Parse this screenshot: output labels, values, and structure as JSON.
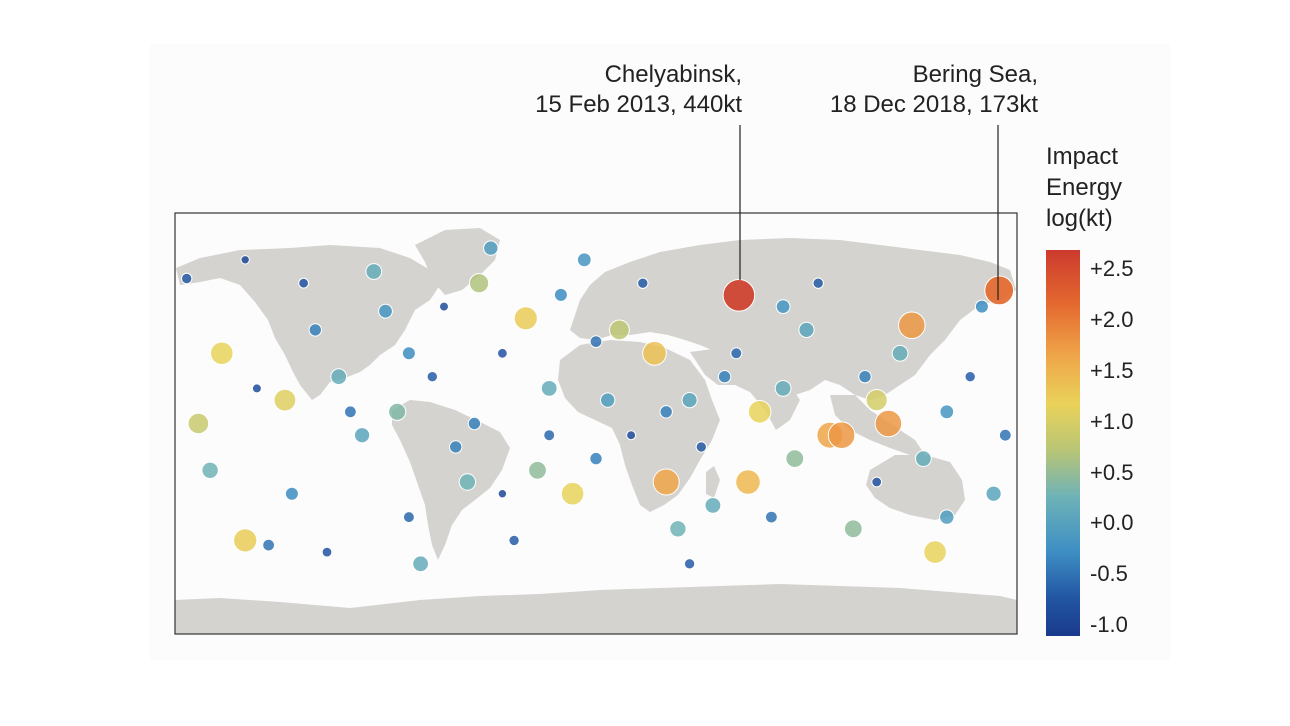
{
  "annotations": {
    "chelyabinsk": {
      "line1": "Chelyabinsk,",
      "line2": "15 Feb 2013, 440kt",
      "lon": 61.1,
      "lat": 54.8,
      "energy_log": 2.64
    },
    "bering": {
      "line1": "Bering Sea,",
      "line2": "18 Dec 2018, 173kt",
      "lon": 172.4,
      "lat": 56.9,
      "energy_log": 2.24
    }
  },
  "legend": {
    "title_line1": "Impact",
    "title_line2": "Energy",
    "title_line3": "log(kt)",
    "ticks": [
      "+2.5",
      "+2.0",
      "+1.5",
      "+1.0",
      "+0.5",
      "+0.0",
      "-0.5",
      "-1.0"
    ],
    "range": [
      -1.0,
      2.7
    ]
  },
  "colors": {
    "land": "#d4d3cf",
    "ocean": "#fcfcfd",
    "scale": [
      "#1a3a8c",
      "#2256a3",
      "#3e8fc4",
      "#6eb2b7",
      "#b8c576",
      "#e9d25a",
      "#efa84a",
      "#e4692f",
      "#cc3a2e"
    ]
  },
  "points": [
    {
      "lon": -175,
      "lat": 62,
      "e": -0.5
    },
    {
      "lon": -160,
      "lat": 30,
      "e": 1.3
    },
    {
      "lon": -150,
      "lat": -50,
      "e": 1.4
    },
    {
      "lon": -140,
      "lat": -52,
      "e": -0.3
    },
    {
      "lon": -133,
      "lat": 10,
      "e": 1.2
    },
    {
      "lon": -120,
      "lat": 40,
      "e": -0.2
    },
    {
      "lon": -110,
      "lat": 20,
      "e": 0.3
    },
    {
      "lon": -100,
      "lat": -5,
      "e": 0.2
    },
    {
      "lon": -90,
      "lat": 48,
      "e": 0.0
    },
    {
      "lon": -85,
      "lat": 5,
      "e": 0.5
    },
    {
      "lon": -80,
      "lat": -40,
      "e": -0.4
    },
    {
      "lon": -70,
      "lat": 20,
      "e": -0.5
    },
    {
      "lon": -60,
      "lat": -10,
      "e": -0.2
    },
    {
      "lon": -55,
      "lat": -25,
      "e": 0.4
    },
    {
      "lon": -50,
      "lat": 60,
      "e": 0.8
    },
    {
      "lon": -45,
      "lat": 75,
      "e": 0.1
    },
    {
      "lon": -40,
      "lat": 30,
      "e": -0.6
    },
    {
      "lon": -30,
      "lat": 45,
      "e": 1.4
    },
    {
      "lon": -25,
      "lat": -20,
      "e": 0.6
    },
    {
      "lon": -20,
      "lat": -5,
      "e": -0.4
    },
    {
      "lon": -15,
      "lat": 55,
      "e": -0.1
    },
    {
      "lon": -10,
      "lat": -30,
      "e": 1.3
    },
    {
      "lon": 0,
      "lat": 35,
      "e": -0.3
    },
    {
      "lon": 5,
      "lat": 10,
      "e": 0.1
    },
    {
      "lon": 10,
      "lat": 40,
      "e": 0.9
    },
    {
      "lon": 15,
      "lat": -5,
      "e": -0.7
    },
    {
      "lon": 25,
      "lat": 30,
      "e": 1.5
    },
    {
      "lon": 30,
      "lat": -25,
      "e": 1.8
    },
    {
      "lon": 35,
      "lat": -45,
      "e": 0.4
    },
    {
      "lon": 40,
      "lat": 10,
      "e": 0.2
    },
    {
      "lon": 45,
      "lat": -10,
      "e": -0.5
    },
    {
      "lon": 50,
      "lat": -35,
      "e": 0.3
    },
    {
      "lon": 55,
      "lat": 20,
      "e": -0.2
    },
    {
      "lon": 65,
      "lat": -25,
      "e": 1.6
    },
    {
      "lon": 70,
      "lat": 5,
      "e": 1.3
    },
    {
      "lon": 80,
      "lat": 15,
      "e": 0.3
    },
    {
      "lon": 85,
      "lat": -15,
      "e": 0.6
    },
    {
      "lon": 90,
      "lat": 40,
      "e": 0.2
    },
    {
      "lon": 100,
      "lat": -5,
      "e": 1.8
    },
    {
      "lon": 105,
      "lat": -5,
      "e": 1.9
    },
    {
      "lon": 110,
      "lat": -45,
      "e": 0.6
    },
    {
      "lon": 120,
      "lat": 10,
      "e": 1.1
    },
    {
      "lon": 125,
      "lat": 0,
      "e": 1.9
    },
    {
      "lon": 130,
      "lat": 30,
      "e": 0.3
    },
    {
      "lon": 135,
      "lat": 42,
      "e": 1.9
    },
    {
      "lon": 140,
      "lat": -15,
      "e": 0.3
    },
    {
      "lon": 150,
      "lat": -40,
      "e": 0.1
    },
    {
      "lon": 160,
      "lat": 20,
      "e": -0.5
    },
    {
      "lon": 170,
      "lat": -30,
      "e": 0.2
    },
    {
      "lon": 175,
      "lat": -5,
      "e": -0.3
    },
    {
      "lon": -170,
      "lat": 0,
      "e": 1.0
    },
    {
      "lon": -165,
      "lat": -20,
      "e": 0.4
    },
    {
      "lon": -150,
      "lat": 70,
      "e": -0.8
    },
    {
      "lon": -130,
      "lat": -30,
      "e": -0.1
    },
    {
      "lon": -115,
      "lat": -55,
      "e": -0.6
    },
    {
      "lon": -95,
      "lat": 65,
      "e": 0.3
    },
    {
      "lon": -80,
      "lat": 30,
      "e": -0.1
    },
    {
      "lon": -65,
      "lat": 50,
      "e": -0.7
    },
    {
      "lon": -52,
      "lat": 0,
      "e": -0.2
    },
    {
      "lon": -35,
      "lat": -50,
      "e": -0.5
    },
    {
      "lon": -20,
      "lat": 15,
      "e": 0.3
    },
    {
      "lon": -5,
      "lat": 70,
      "e": 0.0
    },
    {
      "lon": 20,
      "lat": 60,
      "e": -0.5
    },
    {
      "lon": 30,
      "lat": 5,
      "e": -0.2
    },
    {
      "lon": 60,
      "lat": 30,
      "e": -0.4
    },
    {
      "lon": 75,
      "lat": -40,
      "e": -0.3
    },
    {
      "lon": 95,
      "lat": 60,
      "e": -0.5
    },
    {
      "lon": 115,
      "lat": 20,
      "e": -0.2
    },
    {
      "lon": 145,
      "lat": -55,
      "e": 1.3
    },
    {
      "lon": 165,
      "lat": 50,
      "e": -0.1
    },
    {
      "lon": -125,
      "lat": 60,
      "e": -0.6
    },
    {
      "lon": -105,
      "lat": 5,
      "e": -0.3
    },
    {
      "lon": -75,
      "lat": -60,
      "e": 0.3
    },
    {
      "lon": -40,
      "lat": -30,
      "e": -0.8
    },
    {
      "lon": 0,
      "lat": -15,
      "e": -0.2
    },
    {
      "lon": 40,
      "lat": -60,
      "e": -0.5
    },
    {
      "lon": 80,
      "lat": 50,
      "e": 0.0
    },
    {
      "lon": 120,
      "lat": -25,
      "e": -0.6
    },
    {
      "lon": 150,
      "lat": 5,
      "e": 0.0
    },
    {
      "lon": -145,
      "lat": 15,
      "e": -0.7
    }
  ]
}
